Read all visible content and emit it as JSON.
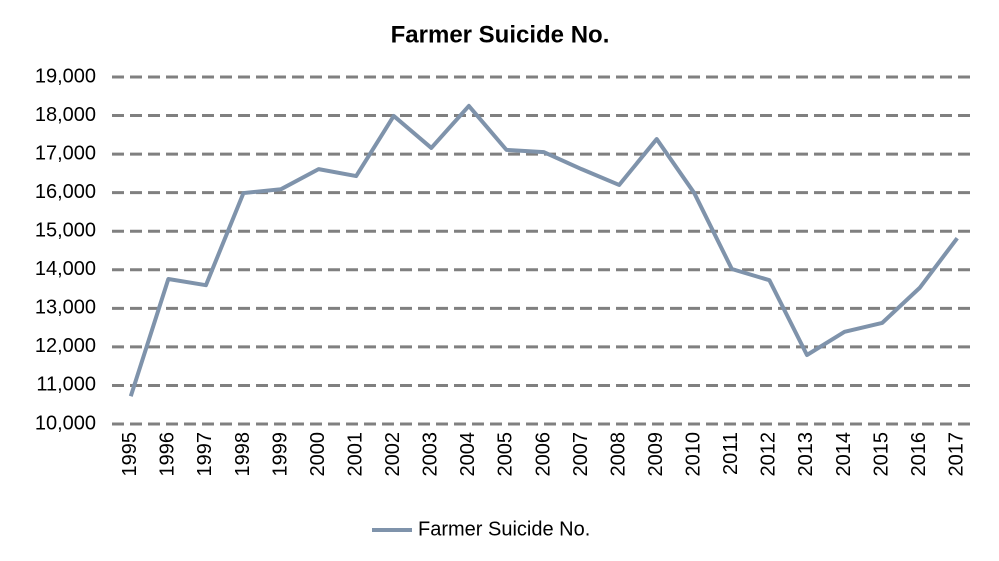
{
  "chart_data": {
    "type": "line",
    "title": "Farmer Suicide No.",
    "categories": [
      "1995",
      "1996",
      "1997",
      "1998",
      "1999",
      "2000",
      "2001",
      "2002",
      "2003",
      "2004",
      "2005",
      "2006",
      "2007",
      "2008",
      "2009",
      "2010",
      "2011",
      "2012",
      "2013",
      "2014",
      "2015",
      "2016",
      "2017"
    ],
    "series": [
      {
        "name": "Farmer Suicide No.",
        "color": "#7f93ab",
        "values": [
          10720,
          13760,
          13600,
          15990,
          16090,
          16610,
          16430,
          17990,
          17160,
          18250,
          17110,
          17050,
          16610,
          16200,
          17390,
          15990,
          14020,
          13730,
          11790,
          12390,
          12620,
          13530,
          14820
        ]
      }
    ],
    "ylim": [
      10000,
      19000
    ],
    "yticks": [
      {
        "value": 10000,
        "label": "10,000"
      },
      {
        "value": 11000,
        "label": "11,000"
      },
      {
        "value": 12000,
        "label": "12,000"
      },
      {
        "value": 13000,
        "label": "13,000"
      },
      {
        "value": 14000,
        "label": "14,000"
      },
      {
        "value": 15000,
        "label": "15,000"
      },
      {
        "value": 16000,
        "label": "16,000"
      },
      {
        "value": 17000,
        "label": "17,000"
      },
      {
        "value": 18000,
        "label": "18,000"
      },
      {
        "value": 19000,
        "label": "19,000"
      }
    ],
    "grid": true,
    "legend": "bottom"
  }
}
